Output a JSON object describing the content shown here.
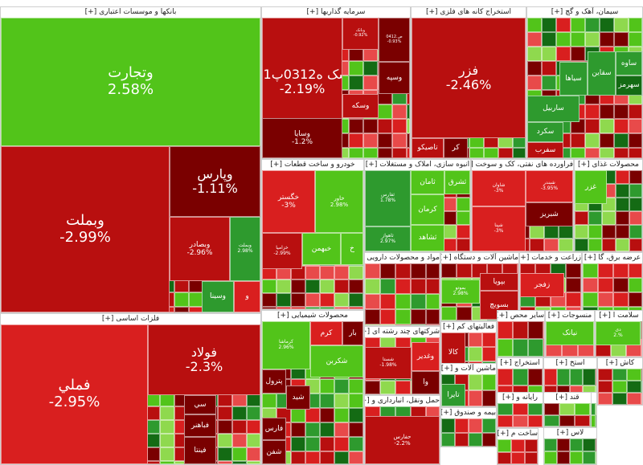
{
  "colors": {
    "dark_red": "#7a0000",
    "red": "#b80f0f",
    "light_red": "#d91f1f",
    "pink_red": "#e84a4a",
    "dark_green": "#146b14",
    "green": "#2e9a2e",
    "light_green": "#52c41a",
    "pale_green": "#8fd94e",
    "gray": "#bdbdbd",
    "white": "#ffffff"
  },
  "chart_data": {
    "type": "treemap",
    "title": "",
    "expand_marker": "[+]",
    "sectors": [
      {
        "name": "بانکها و موسسات اعتباری",
        "tiles": [
          {
            "name": "وتجارت",
            "change": "2.58%"
          },
          {
            "name": "وبملت",
            "change": "-2.99%"
          },
          {
            "name": "وپارس",
            "change": "-1.11%"
          },
          {
            "name": "وبصادر",
            "change": "-2.96%"
          },
          {
            "name": "وبملت",
            "change": "2.98%"
          },
          {
            "name": "وسینا",
            "change": ""
          },
          {
            "name": "و",
            "change": ""
          }
        ]
      },
      {
        "name": "سرمایه گذاریها",
        "tiles": [
          {
            "name": "سک ه0312پ01",
            "change": "-2.19%"
          },
          {
            "name": "وسپه",
            "change": ""
          },
          {
            "name": "وسکه",
            "change": ""
          },
          {
            "name": "وسایا",
            "change": "-1.2%"
          },
          {
            "name": "وبانک",
            "change": "-0.92%"
          },
          {
            "name": "ص.0412",
            "change": "-0.93%"
          }
        ]
      },
      {
        "name": "استخراج کانه های فلزی",
        "tiles": [
          {
            "name": "فزر",
            "change": "-2.46%"
          },
          {
            "name": "تاصیکو",
            "change": ""
          },
          {
            "name": "کر",
            "change": ""
          }
        ]
      },
      {
        "name": "سیمان، آهک و گچ",
        "tiles": [
          {
            "name": "سیاها",
            "change": ""
          },
          {
            "name": "سقاین",
            "change": ""
          },
          {
            "name": "ساوه",
            "change": ""
          },
          {
            "name": "سهرمز",
            "change": ""
          },
          {
            "name": "ساربیل",
            "change": ""
          },
          {
            "name": "سکرد",
            "change": ""
          },
          {
            "name": "سفرب",
            "change": ""
          }
        ]
      },
      {
        "name": "خودرو و ساخت قطعات",
        "tiles": [
          {
            "name": "خگستر",
            "change": "-3%"
          },
          {
            "name": "خاور",
            "change": "2.98%"
          },
          {
            "name": "خزامیا",
            "change": "-2.99%"
          },
          {
            "name": "خبهمن",
            "change": ""
          },
          {
            "name": "خ",
            "change": ""
          }
        ]
      },
      {
        "name": "انبوه سازی، املاک و مستغلات",
        "tiles": [
          {
            "name": "ثفارس",
            "change": "1.78%"
          },
          {
            "name": "ثامان",
            "change": ""
          },
          {
            "name": "ثشرق",
            "change": ""
          },
          {
            "name": "ثاهواز",
            "change": "2.97%"
          },
          {
            "name": "کرمان",
            "change": ""
          },
          {
            "name": "ثشاهد",
            "change": ""
          }
        ]
      },
      {
        "name": "فراورده های نفتی، کک و سوخت",
        "tiles": [
          {
            "name": "شاوان",
            "change": "-3%"
          },
          {
            "name": "شبریز",
            "change": ""
          },
          {
            "name": "شپنا",
            "change": "-3%"
          },
          {
            "name": "شبندر",
            "change": "-3.95%"
          }
        ]
      },
      {
        "name": "محصولات غذای",
        "tiles": [
          {
            "name": "غزر",
            "change": ""
          }
        ]
      },
      {
        "name": "فلزات اساسی",
        "tiles": [
          {
            "name": "فملي",
            "change": "-2.95%"
          },
          {
            "name": "فولاد",
            "change": "-2.3%"
          },
          {
            "name": "فباهنر",
            "change": ""
          },
          {
            "name": "فینتا",
            "change": ""
          },
          {
            "name": "سي",
            "change": ""
          }
        ]
      },
      {
        "name": "محصولات شیمیایی",
        "tiles": [
          {
            "name": "کرماشا",
            "change": "2.96%"
          },
          {
            "name": "شکربن",
            "change": ""
          },
          {
            "name": "پترول",
            "change": ""
          },
          {
            "name": "شفار",
            "change": ""
          },
          {
            "name": "شید",
            "change": ""
          },
          {
            "name": "فارس",
            "change": ""
          },
          {
            "name": "شفن",
            "change": ""
          },
          {
            "name": "کرم",
            "change": ""
          },
          {
            "name": "بار",
            "change": ""
          }
        ]
      },
      {
        "name": "مواد و محصولات دارویی",
        "tiles": []
      },
      {
        "name": "ماشین آلات و دستگاه",
        "tiles": [
          {
            "name": "بپویا",
            "change": ""
          },
          {
            "name": "بسویچ",
            "change": ""
          },
          {
            "name": "بموتو",
            "change": "2.98%"
          }
        ]
      },
      {
        "name": "زراعت و خدمات",
        "tiles": [
          {
            "name": "زفجر",
            "change": ""
          }
        ]
      },
      {
        "name": "عرضه برق، گا",
        "tiles": []
      },
      {
        "name": "شرکتهای چند رشته ای",
        "tiles": [
          {
            "name": "وغدیر",
            "change": ""
          },
          {
            "name": "شستا",
            "change": "-1.98%"
          },
          {
            "name": "وا",
            "change": ""
          }
        ]
      },
      {
        "name": "فعالیتهای کم",
        "tiles": [
          {
            "name": "کالا",
            "change": ""
          }
        ]
      },
      {
        "name": "سایر محص",
        "tiles": []
      },
      {
        "name": "منسوجات",
        "tiles": [
          {
            "name": "نیانک",
            "change": ""
          }
        ]
      },
      {
        "name": "سلامت ا",
        "tiles": [
          {
            "name": "دی",
            "change": "2.%"
          }
        ]
      },
      {
        "name": "استخراج",
        "tiles": []
      },
      {
        "name": "استخ",
        "tiles": []
      },
      {
        "name": "ماشین آلات و",
        "tiles": [
          {
            "name": "تایرا",
            "change": ""
          },
          {
            "name": "سمگا",
            "change": ""
          }
        ]
      },
      {
        "name": "حمل ونقل، انبارداری و",
        "tiles": [
          {
            "name": "حفارس",
            "change": "-2.2%"
          }
        ]
      },
      {
        "name": "رایانه و",
        "tiles": []
      },
      {
        "name": "کاش",
        "tiles": []
      },
      {
        "name": "بیمه و صندوق",
        "tiles": []
      },
      {
        "name": "ساخت م",
        "tiles": []
      },
      {
        "name": "قند",
        "tiles": []
      },
      {
        "name": "لاس",
        "tiles": []
      },
      {
        "name": "کاش",
        "tiles": []
      }
    ]
  }
}
